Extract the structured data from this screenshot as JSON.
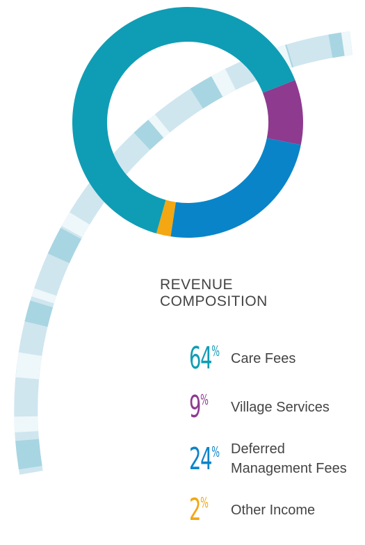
{
  "chart_data": {
    "type": "donut",
    "title": "REVENUE COMPOSITION",
    "unit": "%",
    "series": [
      {
        "name": "Village Services",
        "color": "#8e3a8f",
        "value": 9
      },
      {
        "name": "Deferred Management Fees",
        "color": "#0a84c9",
        "value": 24
      },
      {
        "name": "Other Income",
        "color": "#f3a712",
        "value": 2
      },
      {
        "name": "Care Fees",
        "color": "#0f9db5",
        "value": 64
      }
    ],
    "legend_order": [
      3,
      0,
      1,
      2
    ]
  }
}
